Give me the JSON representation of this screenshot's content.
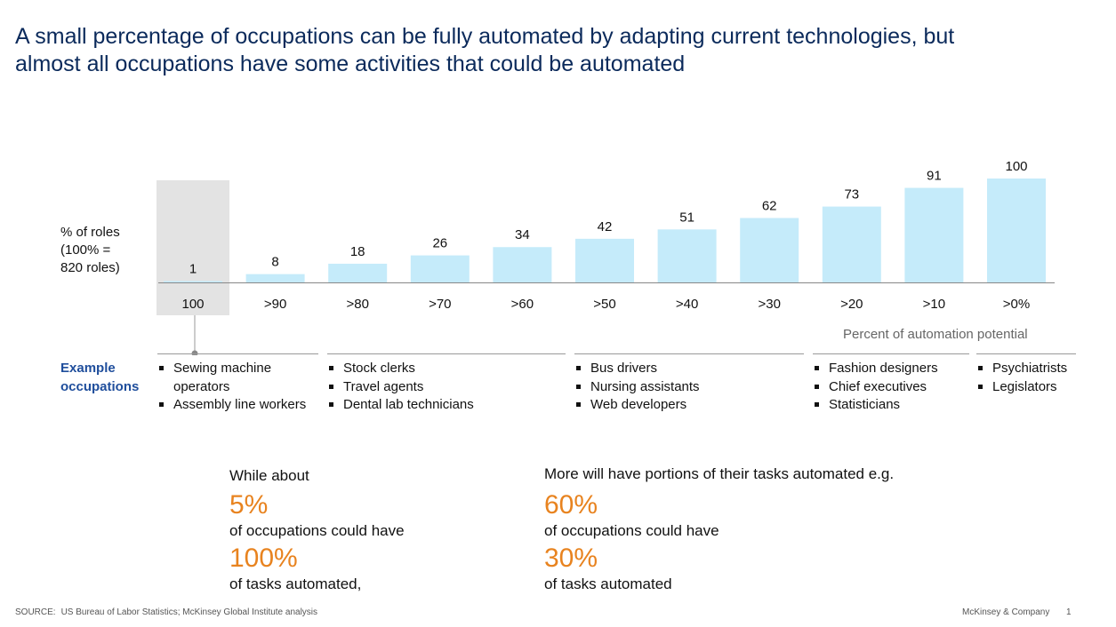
{
  "title": {
    "line1": "A small percentage of occupations can be fully automated by adapting current technologies, but",
    "line2": "almost all occupations have some activities that could be automated"
  },
  "ylabel": {
    "line1": "% of roles",
    "line2": "(100% =",
    "line3": "820 roles)"
  },
  "chart_data": {
    "type": "bar",
    "categories": [
      "100",
      ">90",
      ">80",
      ">70",
      ">60",
      ">50",
      ">40",
      ">30",
      ">20",
      ">10",
      ">0%"
    ],
    "values": [
      1,
      8,
      18,
      26,
      34,
      42,
      51,
      62,
      73,
      91,
      100
    ],
    "ylabel": "% of roles (100% = 820 roles)",
    "xlabel": "Percent of automation potential",
    "ylim": [
      0,
      100
    ],
    "highlight_category": "100",
    "bar_color": "#c5ebfa",
    "highlight_color": "#e3e3e3"
  },
  "xcaption": "Percent of automation potential",
  "examples": {
    "label_line1": "Example",
    "label_line2": "occupations",
    "groups": [
      {
        "items": [
          [
            "Sewing machine",
            "operators"
          ],
          [
            "Assembly line workers"
          ]
        ]
      },
      {
        "items": [
          [
            "Stock clerks"
          ],
          [
            "Travel agents"
          ],
          [
            "Dental lab technicians"
          ]
        ]
      },
      {
        "items": [
          [
            "Bus drivers"
          ],
          [
            "Nursing assistants"
          ],
          [
            "Web developers"
          ]
        ]
      },
      {
        "items": [
          [
            "Fashion designers"
          ],
          [
            "Chief executives"
          ],
          [
            "Statisticians"
          ]
        ]
      },
      {
        "items": [
          [
            "Psychiatrists"
          ],
          [
            "Legislators"
          ]
        ]
      }
    ]
  },
  "callout_left": {
    "intro": "While about",
    "big1": "5%",
    "mid": "of occupations could have",
    "big2": "100%",
    "end": "of tasks automated,"
  },
  "callout_right": {
    "intro": "More will have portions of their tasks automated e.g.",
    "big1": "60%",
    "mid": "of occupations could have",
    "big2": "30%",
    "end": "of tasks automated"
  },
  "footer": {
    "source_label": "SOURCE:",
    "source_text": "US Bureau of Labor Statistics; McKinsey Global Institute analysis",
    "brand": "McKinsey & Company",
    "page": "1"
  }
}
